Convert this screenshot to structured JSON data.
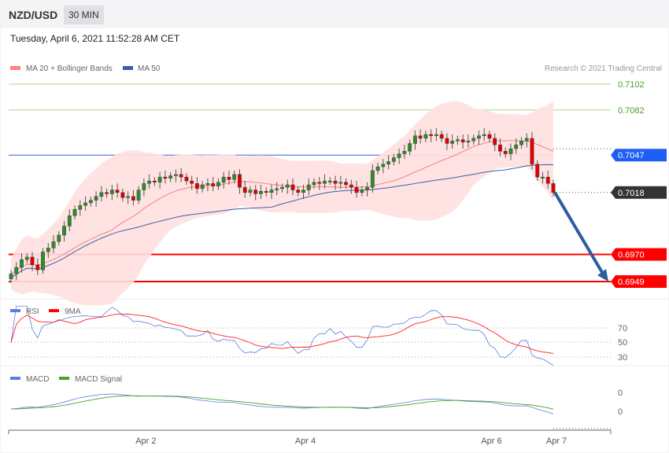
{
  "header": {
    "symbol": "NZD/USD",
    "timeframe": "30 MIN"
  },
  "date": "Tuesday, April 6, 2021 11:52:28 AM CET",
  "legend": {
    "ma20": "MA 20 + Bollinger Bands",
    "ma50": "MA 50",
    "copyright": "Research © 2021 Trading Central"
  },
  "levels": [
    {
      "value": "0.7102",
      "price": 0.7102,
      "color": "#7cc04f",
      "type": "text"
    },
    {
      "value": "0.7082",
      "price": 0.7082,
      "color": "#7cc04f",
      "type": "text"
    },
    {
      "value": "0.7047",
      "price": 0.7047,
      "color": "#1e5ef5",
      "type": "tag"
    },
    {
      "value": "0.7018",
      "price": 0.7018,
      "color": "#333333",
      "type": "tag"
    },
    {
      "value": "0.6970",
      "price": 0.697,
      "color": "#ff0000",
      "type": "tag"
    },
    {
      "value": "0.6949",
      "price": 0.6949,
      "color": "#ff0000",
      "type": "tag"
    }
  ],
  "rsi": {
    "legend_rsi": "RSI",
    "legend_ma": "9MA",
    "ticks": [
      "70",
      "50",
      "30"
    ]
  },
  "macd": {
    "legend_macd": "MACD",
    "legend_signal": "MACD Signal",
    "ticks": [
      "0",
      "0"
    ]
  },
  "xaxis": [
    {
      "label": "Apr 2",
      "index": 23
    },
    {
      "label": "Apr 4",
      "index": 53
    },
    {
      "label": "Apr 6",
      "index": 88
    },
    {
      "label": "Apr 7",
      "index": 102
    }
  ],
  "colors": {
    "up": "#2e8b2e",
    "down": "#e00000",
    "ma20": "#f08080",
    "ma50": "#3a5fa8",
    "band": "#ffe0e0",
    "arrow": "#2e5d9e"
  },
  "candles_close": [
    0.6955,
    0.696,
    0.6966,
    0.6968,
    0.6962,
    0.6958,
    0.6972,
    0.6975,
    0.698,
    0.6985,
    0.6992,
    0.7,
    0.7005,
    0.7008,
    0.701,
    0.7012,
    0.7015,
    0.7018,
    0.7017,
    0.702,
    0.7018,
    0.7014,
    0.7015,
    0.7012,
    0.702,
    0.7025,
    0.7027,
    0.7026,
    0.703,
    0.7029,
    0.7031,
    0.7032,
    0.703,
    0.7027,
    0.7025,
    0.7021,
    0.7024,
    0.7025,
    0.7023,
    0.7026,
    0.703,
    0.7028,
    0.7032,
    0.7022,
    0.7018,
    0.702,
    0.7017,
    0.7019,
    0.7018,
    0.702,
    0.7021,
    0.7022,
    0.7024,
    0.702,
    0.7018,
    0.702,
    0.7024,
    0.7026,
    0.7025,
    0.7027,
    0.7027,
    0.7025,
    0.7026,
    0.7024,
    0.7022,
    0.7018,
    0.702,
    0.7022,
    0.7035,
    0.7038,
    0.704,
    0.7042,
    0.7045,
    0.7048,
    0.705,
    0.7056,
    0.7062,
    0.706,
    0.7063,
    0.7062,
    0.7063,
    0.706,
    0.7056,
    0.7058,
    0.7059,
    0.7057,
    0.7058,
    0.706,
    0.7062,
    0.7063,
    0.706,
    0.7055,
    0.705,
    0.7048,
    0.7052,
    0.7055,
    0.7058,
    0.706,
    0.704,
    0.703,
    0.703,
    0.7025,
    0.7018
  ],
  "target_price": 0.6949
}
